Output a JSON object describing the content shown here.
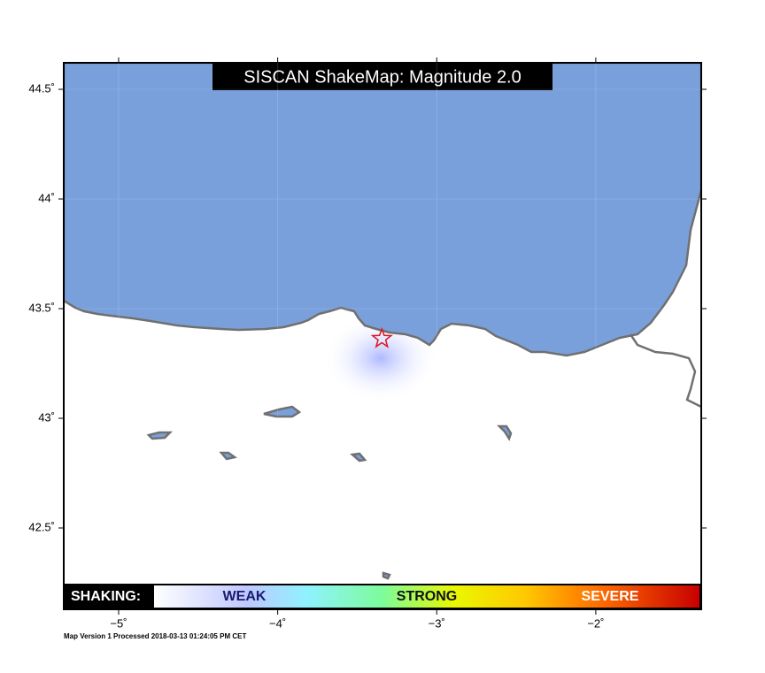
{
  "map": {
    "title": "SISCAN ShakeMap: Magnitude 2.0",
    "lonlim": [
      -5.345,
      -1.337
    ],
    "latlim": [
      42.129,
      44.621
    ],
    "lon_ticks": [
      {
        "value": -5,
        "label": "−5˚"
      },
      {
        "value": -4,
        "label": "−4˚"
      },
      {
        "value": -3,
        "label": "−3˚"
      },
      {
        "value": -2,
        "label": "−2˚"
      }
    ],
    "lat_ticks": [
      {
        "value": 44.5,
        "label": "44.5˚"
      },
      {
        "value": 44,
        "label": "44˚"
      },
      {
        "value": 43.5,
        "label": "43.5˚"
      },
      {
        "value": 43,
        "label": "43˚"
      },
      {
        "value": 42.5,
        "label": "42.5˚"
      }
    ],
    "epicenter": {
      "lon": -3.345,
      "lat": 43.363
    },
    "legend": {
      "title": "SHAKING:",
      "weak": "WEAK",
      "strong": "STRONG",
      "severe": "SEVERE"
    },
    "footer": "Map Version 1 Processed 2018-03-13 01:24:05 PM CET"
  }
}
